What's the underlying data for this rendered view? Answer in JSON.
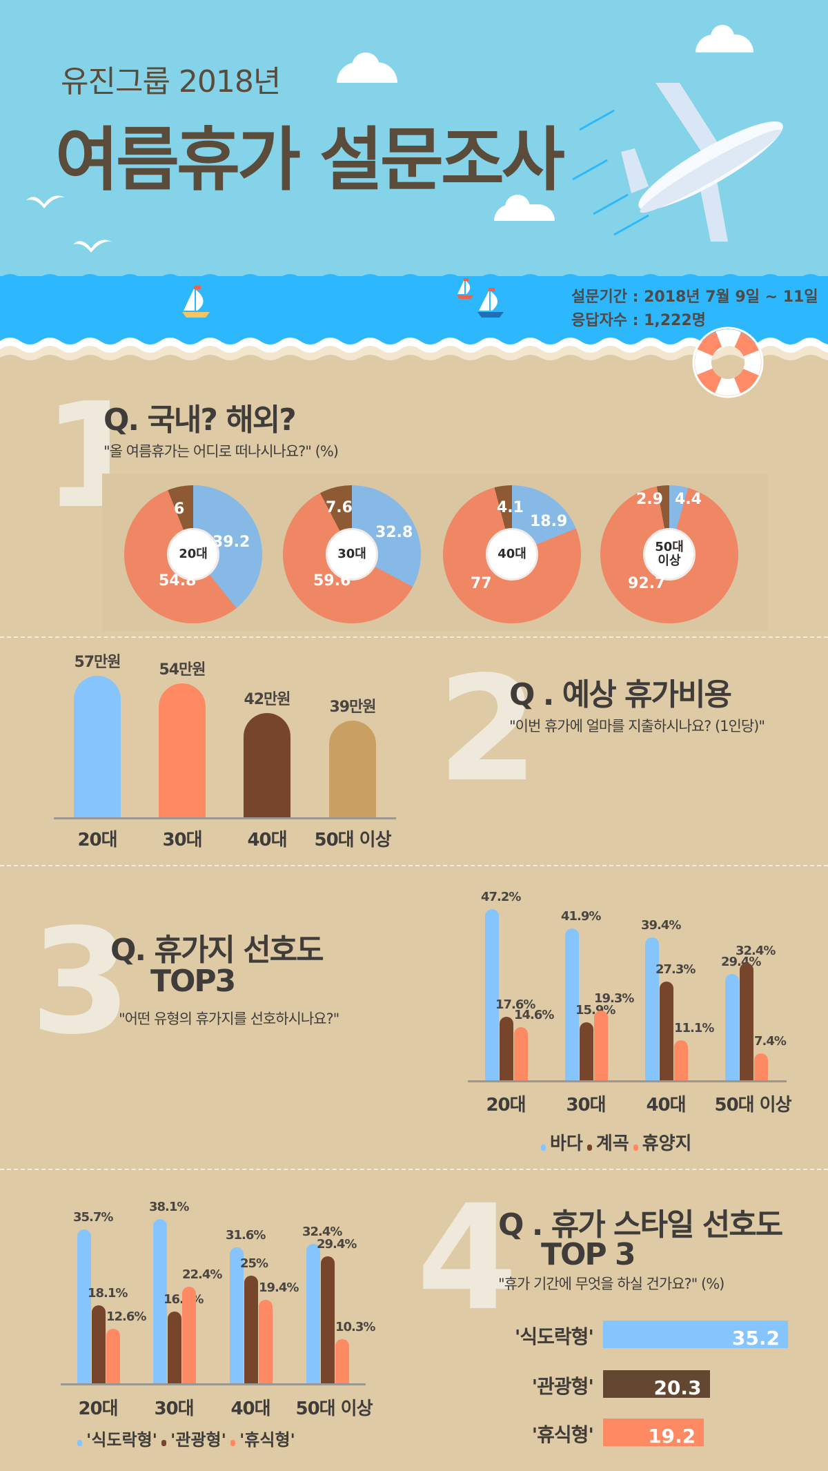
{
  "header": {
    "subtitle": "유진그룹 2018년",
    "title": "여름휴가 설문조사",
    "survey_period": "설문기간 : 2018년 7월 9일 ~ 11일",
    "respondents": "응답자수 : 1,222명"
  },
  "colors": {
    "sky": "#84d3e8",
    "sea": "#2db7fc",
    "sand": "#decba6",
    "blue": "#86c4fd",
    "brown": "#77452c",
    "orange": "#fe8a63",
    "tan": "#c9a062",
    "pie_blue": "#86b9e6",
    "pie_orange": "#ef8664",
    "pie_brown": "#8d5a34"
  },
  "section1": {
    "numeral": "1",
    "title": "Q. 국내? 해외?",
    "subtitle": "\"올 여름휴가는 어디로 떠나시나요?\" (%)"
  },
  "section2": {
    "numeral": "2",
    "title": "Q . 예상 휴가비용",
    "subtitle": "\"이번 휴가에 얼마를 지출하시나요? (1인당)\""
  },
  "section3": {
    "numeral": "3",
    "title_line1": "Q. 휴가지 선호도",
    "title_line2": "TOP3",
    "subtitle": "\"어떤 유형의 휴가지를 선호하시나요?\""
  },
  "section4": {
    "numeral": "4",
    "title_line1": "Q . 휴가 스타일 선호도",
    "title_line2": "TOP 3",
    "subtitle": "\"휴가 기간에 무엇을 하실 건가요?\" (%)"
  },
  "chart_data": [
    {
      "id": "domestic_vs_overseas",
      "type": "pie",
      "title": "Q. 국내? 해외?",
      "subtitle": "\"올 여름휴가는 어디로 떠나시나요?\" (%)",
      "categories": [
        "20대",
        "30대",
        "40대",
        "50대 이상"
      ],
      "center_labels": [
        "20대",
        "30대",
        "40대",
        "50대\n이상"
      ],
      "series": [
        {
          "name": "blue",
          "color": "#86b9e6",
          "values": [
            39.2,
            32.8,
            18.9,
            4.4
          ],
          "labels": [
            "39.2",
            "32.8",
            "18.9",
            "4.4"
          ]
        },
        {
          "name": "orange",
          "color": "#ef8664",
          "values": [
            54.8,
            59.6,
            77,
            92.7
          ],
          "labels": [
            "54.8",
            "59.6",
            "77",
            "92.7"
          ]
        },
        {
          "name": "brown",
          "color": "#8d5a34",
          "values": [
            6,
            7.6,
            4.1,
            2.9
          ],
          "labels": [
            "6",
            "7.6",
            "4.1",
            "2.9"
          ]
        }
      ]
    },
    {
      "id": "expected_cost",
      "type": "bar",
      "title": "Q . 예상 휴가비용",
      "subtitle": "\"이번 휴가에 얼마를 지출하시나요? (1인당)\"",
      "categories": [
        "20대",
        "30대",
        "40대",
        "50대 이상"
      ],
      "values": [
        57,
        54,
        42,
        39
      ],
      "value_labels": [
        "57만원",
        "54만원",
        "42만원",
        "39만원"
      ],
      "colors": [
        "#86c4fd",
        "#fe8a63",
        "#77452c",
        "#c9a062"
      ],
      "unit": "만원"
    },
    {
      "id": "destination_preference",
      "type": "bar",
      "title": "Q. 휴가지 선호도 TOP3",
      "subtitle": "\"어떤 유형의 휴가지를 선호하시나요?\"",
      "categories": [
        "20대",
        "30대",
        "40대",
        "50대 이상"
      ],
      "series": [
        {
          "name": "바다",
          "color": "#86c4fd",
          "values": [
            47.2,
            41.9,
            39.4,
            29.4
          ],
          "labels": [
            "47.2%",
            "41.9%",
            "39.4%",
            "29.4%"
          ]
        },
        {
          "name": "계곡",
          "color": "#77452c",
          "values": [
            17.6,
            15.9,
            27.3,
            32.4
          ],
          "labels": [
            "17.6%",
            "15.9%",
            "27.3%",
            "32.4%"
          ]
        },
        {
          "name": "휴양지",
          "color": "#fe8a63",
          "values": [
            14.6,
            19.3,
            11.1,
            7.4
          ],
          "labels": [
            "14.6%",
            "19.3%",
            "11.1%",
            "7.4%"
          ]
        }
      ],
      "legend": [
        "바다",
        "계곡",
        "휴양지"
      ],
      "legend_position": "bottom"
    },
    {
      "id": "style_by_age",
      "type": "bar",
      "title": "Q . 휴가 스타일 선호도 TOP 3",
      "categories": [
        "20대",
        "30대",
        "40대",
        "50대 이상"
      ],
      "series": [
        {
          "name": "'식도락형'",
          "color": "#86c4fd",
          "values": [
            35.7,
            38.1,
            31.6,
            32.4
          ],
          "labels": [
            "35.7%",
            "38.1%",
            "31.6%",
            "32.4%"
          ]
        },
        {
          "name": "'관광형'",
          "color": "#77452c",
          "values": [
            18.1,
            16.6,
            25,
            29.4
          ],
          "labels": [
            "18.1%",
            "16.6%",
            "25%",
            "29.4%"
          ]
        },
        {
          "name": "'휴식형'",
          "color": "#fe8a63",
          "values": [
            12.6,
            22.4,
            19.4,
            10.3
          ],
          "labels": [
            "12.6%",
            "22.4%",
            "19.4%",
            "10.3%"
          ]
        }
      ],
      "legend": [
        "'식도락형'",
        "'관광형'",
        "'휴식형'"
      ],
      "legend_position": "bottom"
    },
    {
      "id": "style_overall",
      "type": "bar",
      "orientation": "horizontal",
      "subtitle": "\"휴가 기간에 무엇을 하실 건가요?\" (%)",
      "categories": [
        "'식도락형'",
        "'관광형'",
        "'휴식형'"
      ],
      "values": [
        35.2,
        20.3,
        19.2
      ],
      "value_labels": [
        "35.2",
        "20.3",
        "19.2"
      ],
      "colors": [
        "#86c4fd",
        "#644730",
        "#fe8a63"
      ]
    }
  ]
}
